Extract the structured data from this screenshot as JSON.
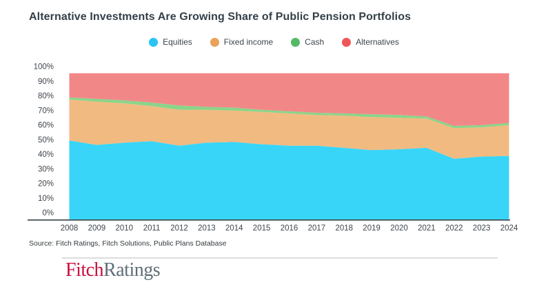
{
  "title": "Alternative Investments Are Growing Share of Public Pension Portfolios",
  "source": "Source: Fitch Ratings, Fitch Solutions, Public Plans Database",
  "logo": {
    "fitch": "Fitch",
    "ratings": "Ratings",
    "fitch_color": "#CA0F3C",
    "ratings_color": "#5F6E79"
  },
  "colors": {
    "title_text": "#333F48",
    "axis_line": "#3A4147",
    "tick_text": "#3E464D"
  },
  "chart_data": {
    "type": "area",
    "stacked": true,
    "title": "Alternative Investments Are Growing Share of Public Pension Portfolios",
    "xlabel": "",
    "ylabel": "",
    "ylim": [
      0,
      100
    ],
    "grid": false,
    "legend_position": "top",
    "x": [
      2008,
      2009,
      2010,
      2011,
      2012,
      2013,
      2014,
      2015,
      2016,
      2017,
      2018,
      2019,
      2020,
      2021,
      2022,
      2023,
      2024
    ],
    "y_tick_labels": [
      "0%",
      "10%",
      "20%",
      "30%",
      "40%",
      "50%",
      "60%",
      "70%",
      "80%",
      "90%",
      "100%"
    ],
    "series": [
      {
        "name": "Equities",
        "color": "#2AC4F3",
        "area_color": "#38D5F9",
        "values": [
          54,
          51,
          52.5,
          53.5,
          50.5,
          52.5,
          53,
          51.5,
          50.5,
          50.5,
          49,
          47.5,
          48,
          49,
          41.5,
          43,
          43.5
        ]
      },
      {
        "name": "Fixed income",
        "color": "#E8A25A",
        "area_color": "#F1BA81",
        "values": [
          28,
          29.5,
          27,
          24,
          24.5,
          22.5,
          21.5,
          22,
          22,
          21,
          22,
          22.5,
          21.5,
          20,
          21,
          20,
          21
        ]
      },
      {
        "name": "Cash",
        "color": "#52BB64",
        "area_color": "#8BD489",
        "values": [
          1.5,
          2,
          2,
          2.5,
          3,
          2,
          2,
          1.5,
          1.5,
          1.5,
          1.5,
          2,
          2,
          1.5,
          1.5,
          1.5,
          1.5
        ]
      },
      {
        "name": "Alternatives",
        "color": "#EF5558",
        "area_color": "#F28788",
        "values": [
          16.5,
          17.5,
          18.5,
          20,
          22,
          23,
          23.5,
          25,
          26,
          27,
          27.5,
          28,
          28.5,
          29.5,
          36,
          35.5,
          34
        ]
      }
    ]
  }
}
